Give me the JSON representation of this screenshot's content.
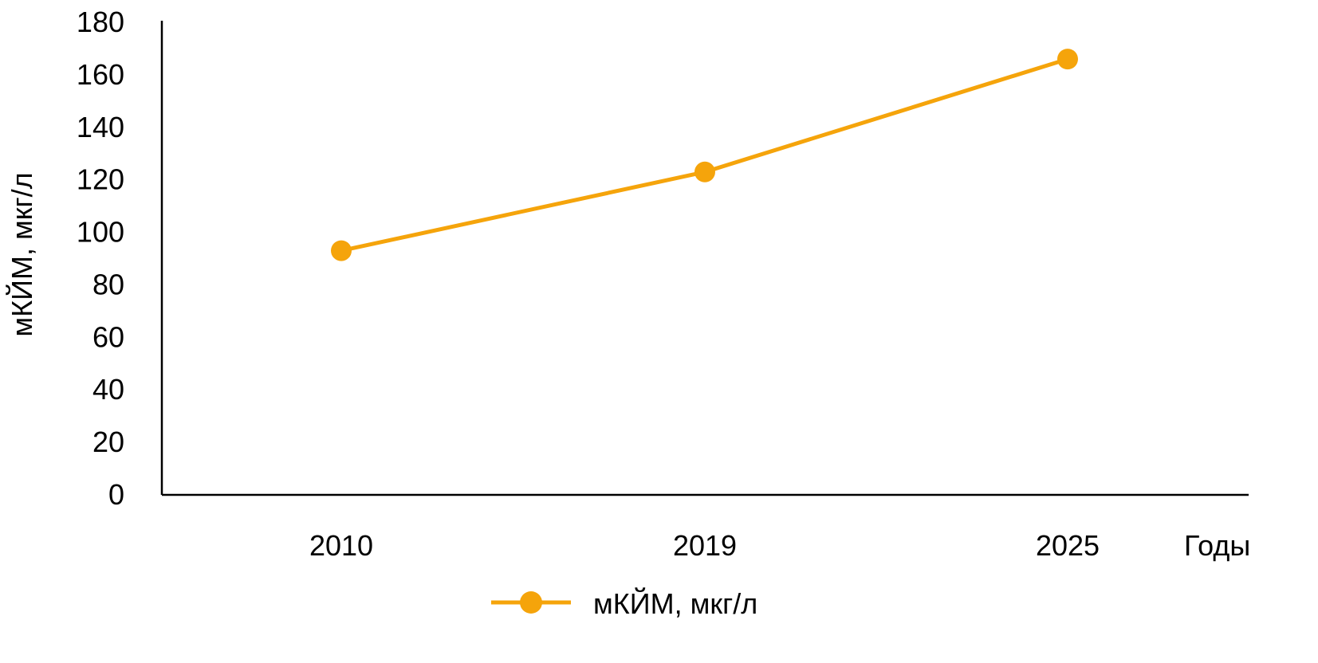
{
  "chart_data": {
    "type": "line",
    "categories": [
      "2010",
      "2019",
      "2025"
    ],
    "series": [
      {
        "name": "мКЙМ, мкг/л",
        "values": [
          93,
          123,
          166
        ],
        "color": "#F5A40B"
      }
    ],
    "title": "",
    "xlabel": "Годы",
    "ylabel": "мКЙМ, мкг/л",
    "ylim": [
      0,
      180
    ],
    "yticks": [
      "0",
      "20",
      "40",
      "60",
      "80",
      "100",
      "120",
      "140",
      "160",
      "180"
    ],
    "grid": false,
    "legend": "bottom-center"
  }
}
